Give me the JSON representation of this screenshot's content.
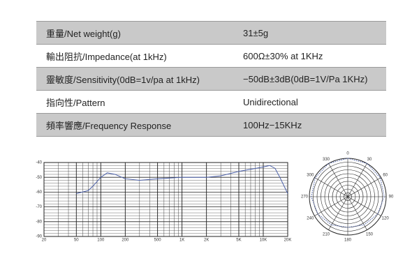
{
  "table": {
    "rows": [
      [
        "重量/Net weight(g)",
        "31±5g"
      ],
      [
        "輸出阻抗/Impedance(at 1kHz)",
        "600Ω±30% at 1KHz"
      ],
      [
        "靈敏度/Sensitivity(0dB=1v/pa at 1kHz)",
        "−50dB±3dB(0dB=1V/Pa 1KHz)"
      ],
      [
        "指向性/Pattern",
        "Unidirectional"
      ],
      [
        "頻率響應/Frequency Response",
        "100Hz−15KHz"
      ]
    ]
  },
  "chart_data": [
    {
      "type": "line",
      "xscale": "log",
      "grid": true,
      "minor_grid": true,
      "color": "#4a5fa8",
      "x": [
        50,
        70,
        80,
        100,
        120,
        150,
        200,
        300,
        500,
        1000,
        2000,
        3000,
        5000,
        8000,
        10000,
        12000,
        14000,
        16000,
        20000
      ],
      "values": [
        -61,
        -59,
        -56,
        -50,
        -47,
        -48,
        -51,
        -52,
        -51,
        -50,
        -50,
        -49,
        -46,
        -44,
        -43,
        -42,
        -44,
        -50,
        -61
      ],
      "xlim": [
        20,
        20000
      ],
      "xticks": [
        20,
        50,
        100,
        200,
        500,
        {
          "value": 1000,
          "label": "1K"
        },
        {
          "value": 2000,
          "label": "2K"
        },
        {
          "value": 5000,
          "label": "5K"
        },
        {
          "value": 10000,
          "label": "10K"
        },
        {
          "value": 20000,
          "label": "20K"
        }
      ],
      "ylim": [
        -90,
        -40
      ],
      "yticks": [
        -40,
        -50,
        -60,
        -70,
        -80,
        -90
      ]
    },
    {
      "type": "polar",
      "color": "#4a5fa8",
      "theta": [
        0,
        30,
        60,
        90,
        120,
        150,
        180,
        210,
        240,
        270,
        300,
        330
      ],
      "values": [
        10,
        10,
        9.8,
        9.5,
        9,
        8.5,
        8,
        8.5,
        9,
        9.5,
        9.8,
        10
      ],
      "rlim": [
        0,
        10
      ],
      "rticks": [
        1,
        2,
        3,
        4,
        5,
        6,
        7,
        8,
        9,
        10
      ]
    }
  ]
}
